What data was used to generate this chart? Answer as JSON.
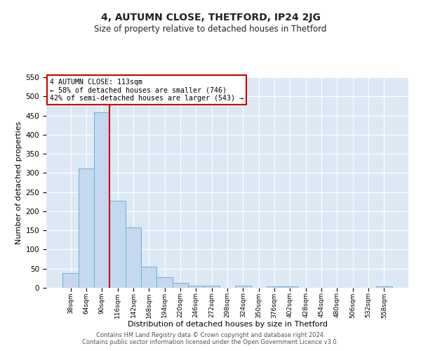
{
  "title": "4, AUTUMN CLOSE, THETFORD, IP24 2JG",
  "subtitle": "Size of property relative to detached houses in Thetford",
  "xlabel": "Distribution of detached houses by size in Thetford",
  "ylabel": "Number of detached properties",
  "footer_line1": "Contains HM Land Registry data © Crown copyright and database right 2024.",
  "footer_line2": "Contains public sector information licensed under the Open Government Licence v3.0.",
  "bar_labels": [
    "38sqm",
    "64sqm",
    "90sqm",
    "116sqm",
    "142sqm",
    "168sqm",
    "194sqm",
    "220sqm",
    "246sqm",
    "272sqm",
    "298sqm",
    "324sqm",
    "350sqm",
    "376sqm",
    "402sqm",
    "428sqm",
    "454sqm",
    "480sqm",
    "506sqm",
    "532sqm",
    "558sqm"
  ],
  "bar_values": [
    38,
    311,
    458,
    228,
    158,
    55,
    27,
    12,
    5,
    5,
    0,
    5,
    0,
    3,
    3,
    0,
    0,
    0,
    0,
    0,
    3
  ],
  "bar_color": "#c5d8f0",
  "bar_edge_color": "#6baed6",
  "ylim": [
    0,
    550
  ],
  "yticks": [
    0,
    50,
    100,
    150,
    200,
    250,
    300,
    350,
    400,
    450,
    500,
    550
  ],
  "property_line_x": 2.5,
  "property_line_color": "#cc0000",
  "annotation_title": "4 AUTUMN CLOSE: 113sqm",
  "annotation_line1": "← 58% of detached houses are smaller (746)",
  "annotation_line2": "42% of semi-detached houses are larger (543) →",
  "annotation_box_facecolor": "#ffffff",
  "annotation_box_edgecolor": "#cc0000",
  "fig_facecolor": "#ffffff",
  "plot_bg_color": "#dce9f5",
  "grid_color": "#ffffff",
  "title_fontsize": 10,
  "subtitle_fontsize": 8.5
}
